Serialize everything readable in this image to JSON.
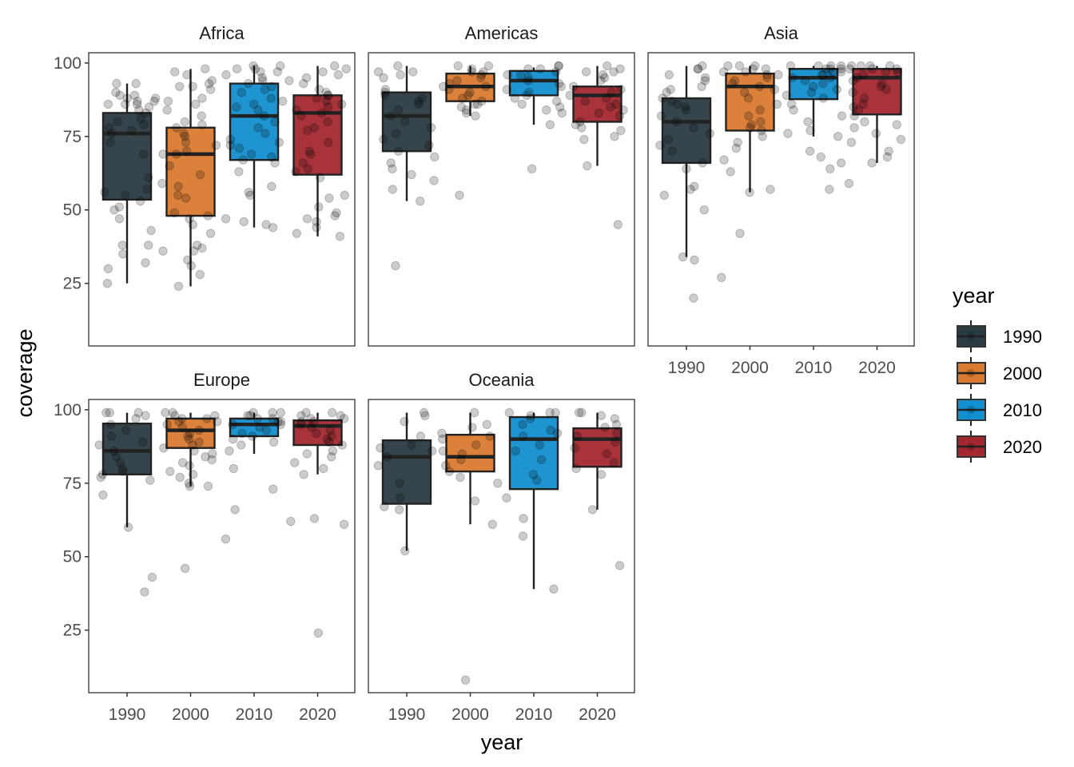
{
  "chart_data": {
    "type": "boxplot",
    "title": "",
    "xlabel": "year",
    "ylabel": "coverage",
    "ylim": [
      3.7,
      103.5
    ],
    "yticks": [
      25,
      50,
      75,
      100
    ],
    "grid": false,
    "categories": [
      "1990",
      "2000",
      "2010",
      "2020"
    ],
    "legend": {
      "title": "year",
      "placement": "right",
      "entries": [
        {
          "label": "1990",
          "color": "#2b3b42"
        },
        {
          "label": "2000",
          "color": "#d97a30"
        },
        {
          "label": "2010",
          "color": "#128fcf"
        },
        {
          "label": "2020",
          "color": "#a3282f"
        }
      ]
    },
    "facets": [
      {
        "name": "Africa",
        "boxes": [
          {
            "year": "1990",
            "whisker_low": 25,
            "q1": 53.5,
            "median": 76,
            "q3": 83,
            "whisker_high": 93
          },
          {
            "year": "2000",
            "whisker_low": 24,
            "q1": 48,
            "median": 69,
            "q3": 78,
            "whisker_high": 98
          },
          {
            "year": "2010",
            "whisker_low": 44,
            "q1": 67,
            "median": 82,
            "q3": 93,
            "whisker_high": 99
          },
          {
            "year": "2020",
            "whisker_low": 41,
            "q1": 62,
            "median": 83,
            "q3": 89,
            "whisker_high": 99
          }
        ],
        "points": [
          [
            93,
            90,
            89,
            88,
            87,
            86,
            86,
            85,
            84,
            83,
            81,
            80,
            79,
            78,
            77,
            76,
            73,
            69,
            61,
            57,
            56,
            55,
            53,
            51,
            50,
            47,
            43,
            38,
            38,
            35,
            32,
            30,
            25,
            93,
            89,
            88,
            87,
            86
          ],
          [
            98,
            97,
            96,
            94,
            93,
            92,
            92,
            91,
            88,
            87,
            86,
            84,
            82,
            80,
            79,
            78,
            76,
            75,
            73,
            72,
            70,
            69,
            69,
            65,
            62,
            59,
            58,
            55,
            54,
            49,
            48,
            47,
            45,
            42,
            38,
            37,
            36,
            36,
            33,
            31,
            28,
            24
          ],
          [
            99,
            99,
            98,
            98,
            97,
            97,
            96,
            95,
            94,
            93,
            92,
            91,
            90,
            88,
            87,
            86,
            85,
            84,
            82,
            80,
            78,
            76,
            74,
            73,
            72,
            71,
            69,
            68,
            67,
            66,
            63,
            58,
            56,
            55,
            47,
            46,
            45,
            44
          ],
          [
            99,
            98,
            97,
            96,
            95,
            94,
            93,
            91,
            90,
            89,
            89,
            88,
            87,
            86,
            85,
            84,
            83,
            82,
            80,
            78,
            77,
            73,
            70,
            69,
            66,
            64,
            63,
            61,
            55,
            54,
            51,
            49,
            48,
            47,
            46,
            44,
            42,
            41
          ]
        ]
      },
      {
        "name": "Americas",
        "boxes": [
          {
            "year": "1990",
            "whisker_low": 53,
            "q1": 70,
            "median": 82,
            "q3": 90,
            "whisker_high": 99
          },
          {
            "year": "2000",
            "whisker_low": 82,
            "q1": 87,
            "median": 92,
            "q3": 96.4,
            "whisker_high": 99
          },
          {
            "year": "2010",
            "whisker_low": 79,
            "q1": 89,
            "median": 94,
            "q3": 97.3,
            "whisker_high": 98.5
          },
          {
            "year": "2020",
            "whisker_low": 65,
            "q1": 80,
            "median": 89,
            "q3": 92,
            "whisker_high": 99
          }
        ],
        "points": [
          [
            99,
            97,
            97,
            96,
            95,
            91,
            90,
            89,
            88,
            87,
            86,
            84,
            82,
            80,
            78,
            76,
            74,
            72,
            70,
            68,
            66,
            64,
            62,
            60,
            57,
            53,
            31
          ],
          [
            99,
            99,
            98,
            97,
            97,
            96,
            95,
            94,
            93,
            92,
            92,
            91,
            90,
            89,
            88,
            87,
            86,
            86,
            85,
            84,
            83,
            82,
            55
          ],
          [
            99,
            99,
            98,
            98,
            97,
            96,
            96,
            95,
            94,
            93,
            92,
            91,
            90,
            89,
            88,
            87,
            86,
            85,
            84,
            83,
            79,
            64
          ],
          [
            99,
            98,
            97,
            97,
            96,
            95,
            94,
            92,
            91,
            90,
            89,
            88,
            87,
            86,
            85,
            84,
            83,
            82,
            80,
            79,
            78,
            77,
            75,
            74,
            65,
            45
          ]
        ]
      },
      {
        "name": "Asia",
        "boxes": [
          {
            "year": "1990",
            "whisker_low": 34,
            "q1": 66,
            "median": 80,
            "q3": 88,
            "whisker_high": 99
          },
          {
            "year": "2000",
            "whisker_low": 56,
            "q1": 77,
            "median": 92,
            "q3": 96.4,
            "whisker_high": 99
          },
          {
            "year": "2010",
            "whisker_low": 75,
            "q1": 87.7,
            "median": 95,
            "q3": 98,
            "whisker_high": 99
          },
          {
            "year": "2020",
            "whisker_low": 66,
            "q1": 82.5,
            "median": 95,
            "q3": 98,
            "whisker_high": 99
          }
        ],
        "points": [
          [
            99,
            98,
            98,
            96,
            95,
            94,
            92,
            91,
            90,
            88,
            87,
            86,
            85,
            84,
            82,
            80,
            78,
            76,
            74,
            72,
            70,
            66,
            64,
            58,
            57,
            55,
            50,
            34,
            33,
            20
          ],
          [
            99,
            99,
            99,
            98,
            98,
            97,
            97,
            96,
            96,
            95,
            94,
            93,
            92,
            91,
            90,
            88,
            86,
            84,
            82,
            80,
            79,
            78,
            77,
            75,
            73,
            71,
            67,
            63,
            57,
            56,
            42,
            27
          ],
          [
            99,
            99,
            99,
            99,
            98,
            98,
            98,
            97,
            97,
            96,
            96,
            95,
            95,
            94,
            93,
            92,
            91,
            90,
            89,
            88,
            86,
            84,
            82,
            80,
            77,
            76,
            75,
            70,
            68,
            66,
            64,
            57
          ],
          [
            99,
            99,
            99,
            99,
            98,
            98,
            98,
            97,
            97,
            96,
            95,
            94,
            93,
            92,
            91,
            90,
            88,
            86,
            85,
            84,
            82,
            80,
            79,
            78,
            76,
            74,
            73,
            70,
            68,
            66,
            59
          ]
        ]
      },
      {
        "name": "Europe",
        "boxes": [
          {
            "year": "1990",
            "whisker_low": 60,
            "q1": 78,
            "median": 86,
            "q3": 95.3,
            "whisker_high": 99
          },
          {
            "year": "2000",
            "whisker_low": 74,
            "q1": 87,
            "median": 93,
            "q3": 97,
            "whisker_high": 99
          },
          {
            "year": "2010",
            "whisker_low": 85,
            "q1": 91,
            "median": 95,
            "q3": 97,
            "whisker_high": 99
          },
          {
            "year": "2020",
            "whisker_low": 78,
            "q1": 88,
            "median": 94.5,
            "q3": 96.4,
            "whisker_high": 99
          }
        ],
        "points": [
          [
            99,
            99,
            99,
            98,
            97,
            95,
            93,
            91,
            89,
            88,
            86,
            84,
            82,
            80,
            79,
            78,
            77,
            76,
            71,
            60,
            43,
            38
          ],
          [
            99,
            99,
            98,
            98,
            97,
            97,
            96,
            96,
            95,
            94,
            93,
            92,
            91,
            90,
            89,
            88,
            87,
            86,
            85,
            84,
            83,
            82,
            81,
            79,
            78,
            77,
            75,
            74,
            74,
            46
          ],
          [
            99,
            99,
            99,
            98,
            98,
            97,
            97,
            96,
            96,
            95,
            95,
            94,
            93,
            92,
            91,
            90,
            89,
            88,
            86,
            80,
            73,
            66,
            56
          ],
          [
            99,
            99,
            98,
            98,
            97,
            97,
            96,
            96,
            95,
            94,
            93,
            92,
            91,
            90,
            89,
            88,
            86,
            85,
            84,
            82,
            80,
            78,
            63,
            62,
            61,
            24
          ]
        ]
      },
      {
        "name": "Oceania",
        "boxes": [
          {
            "year": "1990",
            "whisker_low": 52,
            "q1": 68,
            "median": 84,
            "q3": 89.6,
            "whisker_high": 99
          },
          {
            "year": "2000",
            "whisker_low": 61,
            "q1": 79,
            "median": 84,
            "q3": 91.5,
            "whisker_high": 99
          },
          {
            "year": "2010",
            "whisker_low": 39,
            "q1": 73,
            "median": 90,
            "q3": 97.5,
            "whisker_high": 99
          },
          {
            "year": "2020",
            "whisker_low": 66,
            "q1": 80.6,
            "median": 90,
            "q3": 93.7,
            "whisker_high": 99
          }
        ],
        "points": [
          [
            99,
            98,
            96,
            91,
            88,
            87,
            86,
            84,
            81,
            75,
            70,
            67,
            66,
            52
          ],
          [
            99,
            95,
            94,
            92,
            91,
            90,
            88,
            86,
            85,
            83,
            81,
            79,
            77,
            75,
            69,
            61,
            8
          ],
          [
            99,
            99,
            99,
            98,
            97,
            95,
            93,
            92,
            91,
            88,
            86,
            83,
            78,
            76,
            70,
            63,
            57,
            39
          ],
          [
            99,
            99,
            98,
            97,
            95,
            94,
            92,
            91,
            89,
            87,
            85,
            82,
            80,
            78,
            66,
            47
          ]
        ]
      }
    ]
  }
}
